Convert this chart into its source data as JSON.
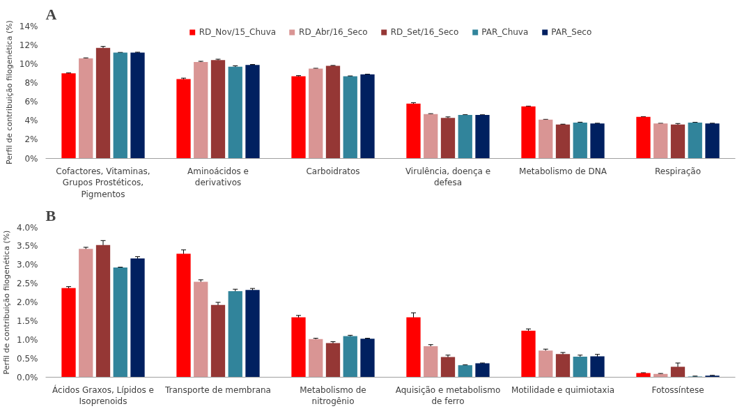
{
  "chart_data": [
    {
      "type": "bar",
      "title": "A",
      "ylabel": "Perfil de contribuição filogenética (%)",
      "legend": "top",
      "categories": [
        "Cofactores, Vitaminas, Grupos Prostéticos, Pigmentos",
        "Aminoácidos e derivativos",
        "Carboidratos",
        "Virulência, doença e defesa",
        "Metabolismo de DNA",
        "Respiração"
      ],
      "ylim": [
        0,
        14
      ],
      "yticks": [
        {
          "value": 0,
          "label": "0%"
        },
        {
          "value": 2,
          "label": "2%"
        },
        {
          "value": 4,
          "label": "4%"
        },
        {
          "value": 6,
          "label": "6%"
        },
        {
          "value": 8,
          "label": "8%"
        },
        {
          "value": 10,
          "label": "10%"
        },
        {
          "value": 12,
          "label": "12%"
        },
        {
          "value": 14,
          "label": "14%"
        }
      ],
      "series": [
        {
          "name": "RD_Nov/15_Chuva",
          "color": "#ff0000",
          "values": [
            9.0,
            8.4,
            8.7,
            5.8,
            5.5,
            4.4
          ],
          "errors": [
            0.05,
            0.1,
            0.06,
            0.1,
            0.04,
            0.02
          ]
        },
        {
          "name": "RD_Abr/16_Seco",
          "color": "#d99594",
          "values": [
            10.6,
            10.2,
            9.5,
            4.7,
            4.1,
            3.7
          ],
          "errors": [
            0.04,
            0.08,
            0.04,
            0.04,
            0.04,
            0.02
          ]
        },
        {
          "name": "RD_Set/16_Seco",
          "color": "#953735",
          "values": [
            11.7,
            10.4,
            9.8,
            4.3,
            3.6,
            3.6
          ],
          "errors": [
            0.15,
            0.1,
            0.04,
            0.1,
            0.03,
            0.1
          ]
        },
        {
          "name": "PAR_Chuva",
          "color": "#31849b",
          "values": [
            11.2,
            9.7,
            8.7,
            4.6,
            3.8,
            3.8
          ],
          "errors": [
            0.02,
            0.1,
            0.03,
            0.03,
            0.04,
            0.02
          ]
        },
        {
          "name": "PAR_Seco",
          "color": "#002060",
          "values": [
            11.2,
            9.9,
            8.9,
            4.6,
            3.7,
            3.7
          ],
          "errors": [
            0.04,
            0.04,
            0.02,
            0.02,
            0.03,
            0.03
          ]
        }
      ]
    },
    {
      "type": "bar",
      "title": "B",
      "ylabel": "Perfil de contribuição filogenética (%)",
      "categories": [
        "Ácidos Graxos, Lípidos e Isoprenoids",
        "Transporte de membrana",
        "Metabolismo de nitrogênio",
        "Aquisição e metabolismo de ferro",
        "Motilidade e quimiotaxia",
        "Fotossíntese"
      ],
      "ylim": [
        0,
        4
      ],
      "yticks": [
        {
          "value": 0,
          "label": "0.0%"
        },
        {
          "value": 0.5,
          "label": "0.5%"
        },
        {
          "value": 1,
          "label": "1.0%"
        },
        {
          "value": 1.5,
          "label": "1.5%"
        },
        {
          "value": 2,
          "label": "2.0%"
        },
        {
          "value": 2.5,
          "label": "2.5%"
        },
        {
          "value": 3,
          "label": "3.0%"
        },
        {
          "value": 3.5,
          "label": "3.5%"
        },
        {
          "value": 4,
          "label": "4.0%"
        }
      ],
      "series": [
        {
          "color": "#ff0000",
          "values": [
            2.38,
            3.3,
            1.6,
            1.6,
            1.24,
            0.11
          ],
          "errors": [
            0.04,
            0.1,
            0.05,
            0.12,
            0.05,
            0.01
          ]
        },
        {
          "color": "#d99594",
          "values": [
            3.43,
            2.55,
            1.02,
            0.83,
            0.71,
            0.09
          ],
          "errors": [
            0.04,
            0.05,
            0.02,
            0.04,
            0.04,
            0.01
          ]
        },
        {
          "color": "#953735",
          "values": [
            3.53,
            1.93,
            0.91,
            0.54,
            0.62,
            0.28
          ],
          "errors": [
            0.12,
            0.07,
            0.04,
            0.05,
            0.04,
            0.1
          ]
        },
        {
          "color": "#31849b",
          "values": [
            2.93,
            2.3,
            1.1,
            0.32,
            0.55,
            0.02
          ],
          "errors": [
            0.01,
            0.05,
            0.02,
            0.01,
            0.04,
            0.01
          ]
        },
        {
          "color": "#002060",
          "values": [
            3.17,
            2.33,
            1.03,
            0.37,
            0.56,
            0.04
          ],
          "errors": [
            0.05,
            0.04,
            0.01,
            0.01,
            0.05,
            0.01
          ]
        }
      ]
    }
  ]
}
